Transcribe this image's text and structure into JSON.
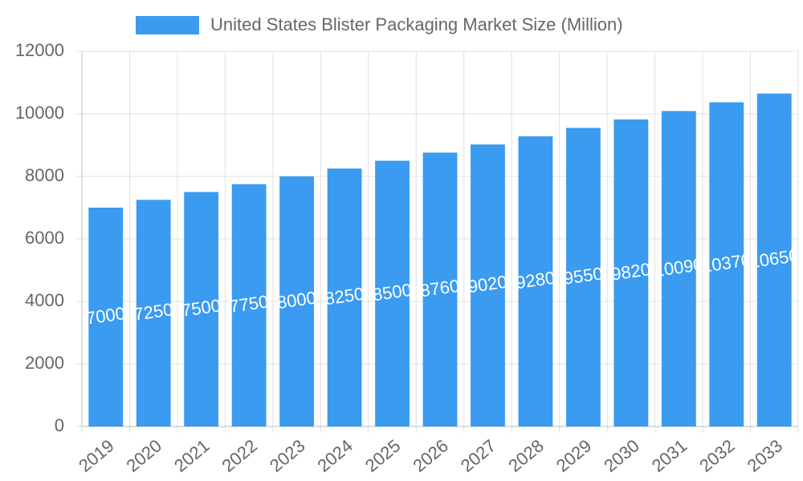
{
  "chart_data": {
    "type": "bar",
    "categories": [
      "2019",
      "2020",
      "2021",
      "2022",
      "2023",
      "2024",
      "2025",
      "2026",
      "2027",
      "2028",
      "2029",
      "2030",
      "2031",
      "2032",
      "2033"
    ],
    "series": [
      {
        "name": "United States Blister Packaging Market Size (Million)",
        "color": "#3a9bf0",
        "values": [
          7000,
          7250,
          7500,
          7750,
          8000,
          8250,
          8500,
          8760,
          9020,
          9280,
          9550,
          9820,
          10090,
          10370,
          10650
        ]
      }
    ],
    "ylim": [
      0,
      12000
    ],
    "yticks": [
      0,
      2000,
      4000,
      6000,
      8000,
      10000,
      12000
    ],
    "grid": true
  }
}
